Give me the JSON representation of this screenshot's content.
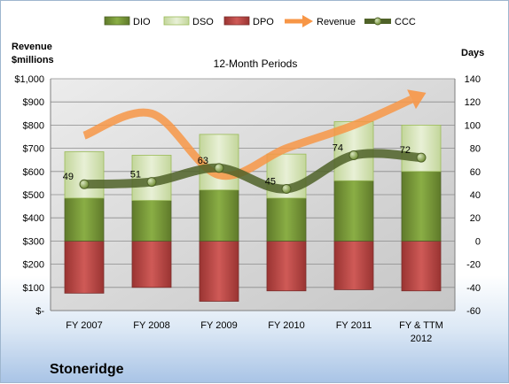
{
  "company": "Stoneridge",
  "chart_data": {
    "type": "bar",
    "title": "12-Month Periods",
    "categories": [
      [
        "FY 2007"
      ],
      [
        "FY 2008"
      ],
      [
        "FY 2009"
      ],
      [
        "FY 2010"
      ],
      [
        "FY 2011"
      ],
      [
        "FY & TTM",
        "2012"
      ]
    ],
    "left_axis": {
      "label_lines": [
        "Revenue",
        "$millions"
      ],
      "range": [
        0,
        1000
      ],
      "ticks": [
        "$-",
        "$100",
        "$200",
        "$300",
        "$400",
        "$500",
        "$600",
        "$700",
        "$800",
        "$900",
        "$1,000"
      ]
    },
    "right_axis": {
      "label": "Days",
      "range": [
        -60,
        140
      ],
      "ticks": [
        "-60",
        "-40",
        "-20",
        "0",
        "20",
        "40",
        "60",
        "80",
        "100",
        "120",
        "140"
      ]
    },
    "legend_position": "top",
    "series": [
      {
        "name": "DIO",
        "kind": "stacked-bar-positive",
        "color": "#77933c",
        "values": [
          37,
          35,
          44,
          37,
          52,
          60
        ]
      },
      {
        "name": "DSO",
        "kind": "stacked-bar-positive",
        "color": "#d7e4bd",
        "values": [
          40,
          39,
          48,
          38,
          51,
          40
        ]
      },
      {
        "name": "DPO",
        "kind": "bar-negative",
        "color": "#c0504d",
        "values": [
          -45,
          -40,
          -52,
          -43,
          -42,
          -43
        ]
      },
      {
        "name": "Revenue",
        "kind": "line",
        "color": "#f79646",
        "values": [
          755,
          850,
          585,
          700,
          800,
          930
        ],
        "arrow": true
      },
      {
        "name": "CCC",
        "kind": "line-markers",
        "color": "#4f6228",
        "values": [
          49,
          51,
          63,
          45,
          74,
          72
        ],
        "data_labels": [
          "49",
          "51",
          "63",
          "45",
          "74",
          "72"
        ]
      }
    ]
  }
}
